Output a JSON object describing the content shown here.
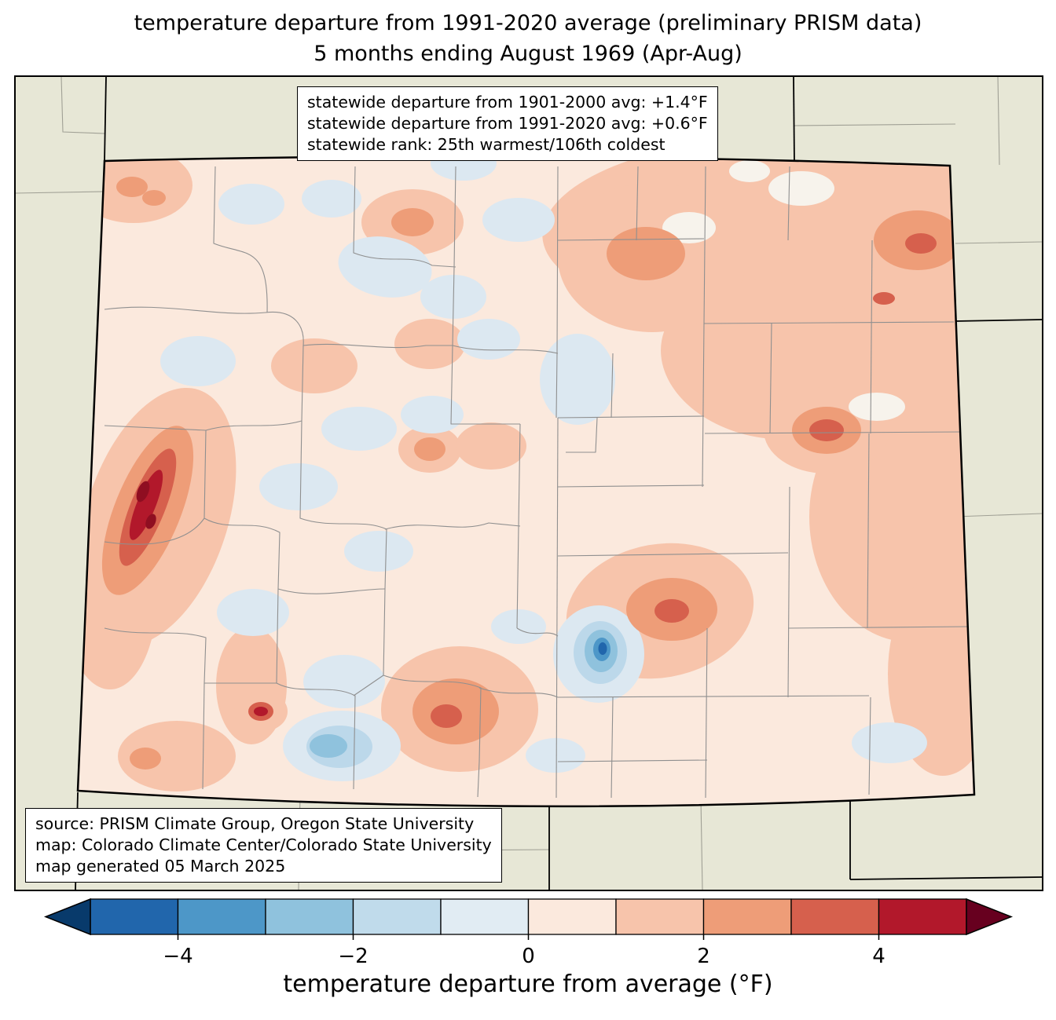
{
  "title": {
    "line1": "temperature departure from 1991-2020 average (preliminary PRISM data)",
    "line2": "5 months ending August 1969 (Apr-Aug)"
  },
  "stats_box": {
    "line1": "statewide departure from 1901-2000 avg: +1.4°F",
    "line2": "statewide departure from 1991-2020 avg: +0.6°F",
    "line3": "statewide rank: 25th warmest/106th coldest"
  },
  "source_box": {
    "line1": "source: PRISM Climate Group, Oregon State University",
    "line2": "map: Colorado Climate Center/Colorado State University",
    "line3": "map generated 05 March 2025"
  },
  "colorbar": {
    "label": "temperature departure from average (°F)",
    "ticks": [
      "−4",
      "−2",
      "0",
      "2",
      "4"
    ],
    "segment_colors": [
      "#2166ac",
      "#4d97c8",
      "#8fc2dd",
      "#c0dbeb",
      "#e1ecf3",
      "#fbe9dd",
      "#f7c4ab",
      "#ee9d78",
      "#d6604d",
      "#b2182b"
    ],
    "left_arrow_color": "#083a6b",
    "right_arrow_color": "#67001f"
  },
  "map_colors": {
    "outside_background": "#e7e7d6",
    "state_base_fill": "#fbe9dd",
    "county_line": "#8f8f8f",
    "state_border": "#000000"
  }
}
